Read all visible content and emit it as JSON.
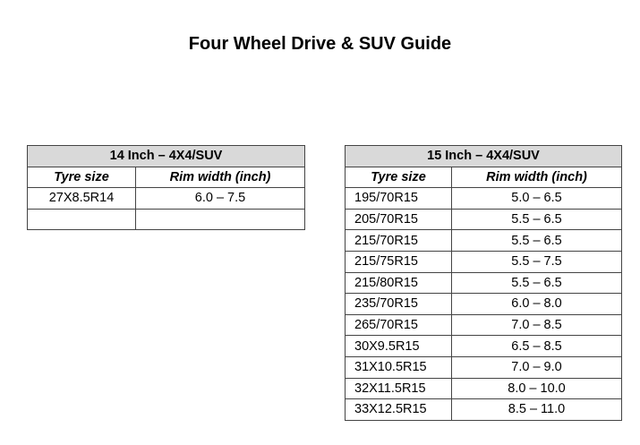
{
  "title": "Four Wheel Drive & SUV Guide",
  "tables": [
    {
      "caption": "14 Inch – 4X4/SUV",
      "columns": [
        "Tyre size",
        "Rim width (inch)"
      ],
      "rows": [
        [
          "27X8.5R14",
          "6.0 – 7.5"
        ]
      ]
    },
    {
      "caption": "15 Inch – 4X4/SUV",
      "columns": [
        "Tyre size",
        "Rim width (inch)"
      ],
      "rows": [
        [
          "195/70R15",
          "5.0 – 6.5"
        ],
        [
          "205/70R15",
          "5.5 – 6.5"
        ],
        [
          "215/70R15",
          "5.5 – 6.5"
        ],
        [
          "215/75R15",
          "5.5 – 7.5"
        ],
        [
          "215/80R15",
          "5.5 – 6.5"
        ],
        [
          "235/70R15",
          "6.0 – 8.0"
        ],
        [
          "265/70R15",
          "7.0 – 8.5"
        ],
        [
          "30X9.5R15",
          "6.5 – 8.5"
        ],
        [
          "31X10.5R15",
          "7.0 – 9.0"
        ],
        [
          "32X11.5R15",
          "8.0 – 10.0"
        ],
        [
          "33X12.5R15",
          "8.5 – 11.0"
        ]
      ]
    }
  ]
}
